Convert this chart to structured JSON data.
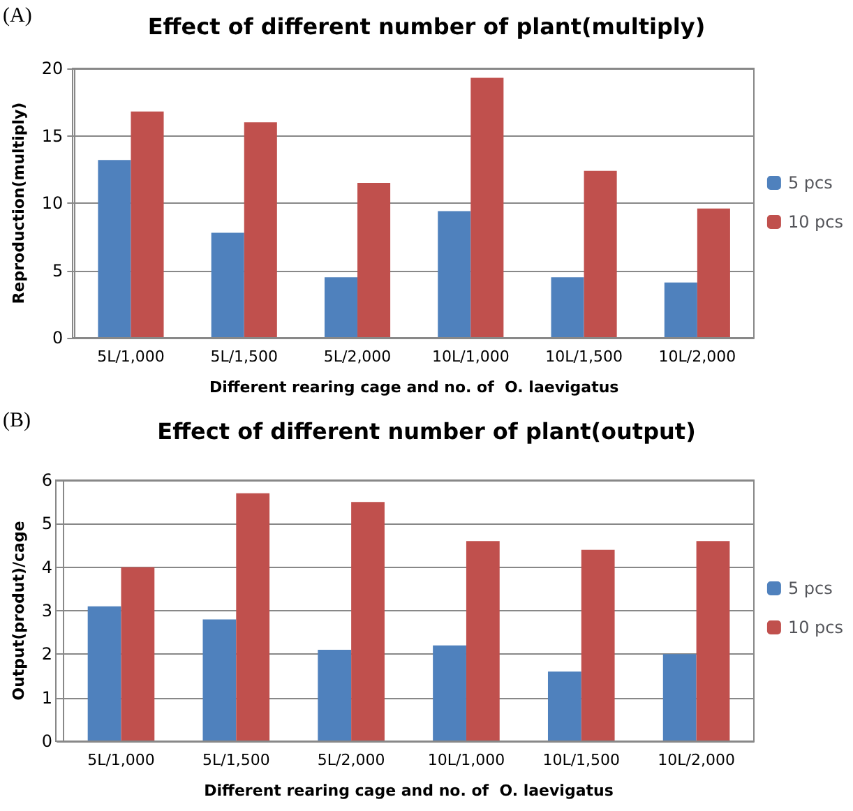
{
  "chart_data": [
    {
      "type": "bar",
      "title": "Effect of different number of plant(multiply)",
      "xlabel": "Different rearing cage and no. of  O. laevigatus",
      "ylabel": "Reproduction(multiply)",
      "annotations": [
        "(A)"
      ],
      "categories": [
        "5L/1,000",
        "5L/1,500",
        "5L/2,000",
        "10L/1,000",
        "10L/1,500",
        "10L/2,000"
      ],
      "series": [
        {
          "name": "5 pcs",
          "color": "#4f81bd",
          "values": [
            13.2,
            7.8,
            4.5,
            9.4,
            4.5,
            4.1
          ]
        },
        {
          "name": "10 pcs",
          "color": "#c0504d",
          "values": [
            16.8,
            16.0,
            11.5,
            19.3,
            12.4,
            9.6
          ]
        }
      ],
      "ylim": [
        0,
        20
      ],
      "yticks": [
        0,
        5,
        10,
        15,
        20
      ],
      "grid": "y",
      "legend": "right"
    },
    {
      "type": "bar",
      "title": "Effect of different number of plant(output)",
      "xlabel": "Different rearing cage and no. of  O. laevigatus",
      "ylabel": "Output(produt)/cage",
      "annotations": [
        "(B)"
      ],
      "categories": [
        "5L/1,000",
        "5L/1,500",
        "5L/2,000",
        "10L/1,000",
        "10L/1,500",
        "10L/2,000"
      ],
      "series": [
        {
          "name": "5 pcs",
          "color": "#4f81bd",
          "values": [
            3.1,
            2.8,
            2.1,
            2.2,
            1.6,
            2.0
          ]
        },
        {
          "name": "10 pcs",
          "color": "#c0504d",
          "values": [
            4.0,
            5.7,
            5.5,
            4.6,
            4.4,
            4.6
          ]
        }
      ],
      "ylim": [
        0,
        6
      ],
      "yticks": [
        0,
        1,
        2,
        3,
        4,
        5,
        6
      ],
      "grid": "y",
      "legend": "right"
    }
  ]
}
